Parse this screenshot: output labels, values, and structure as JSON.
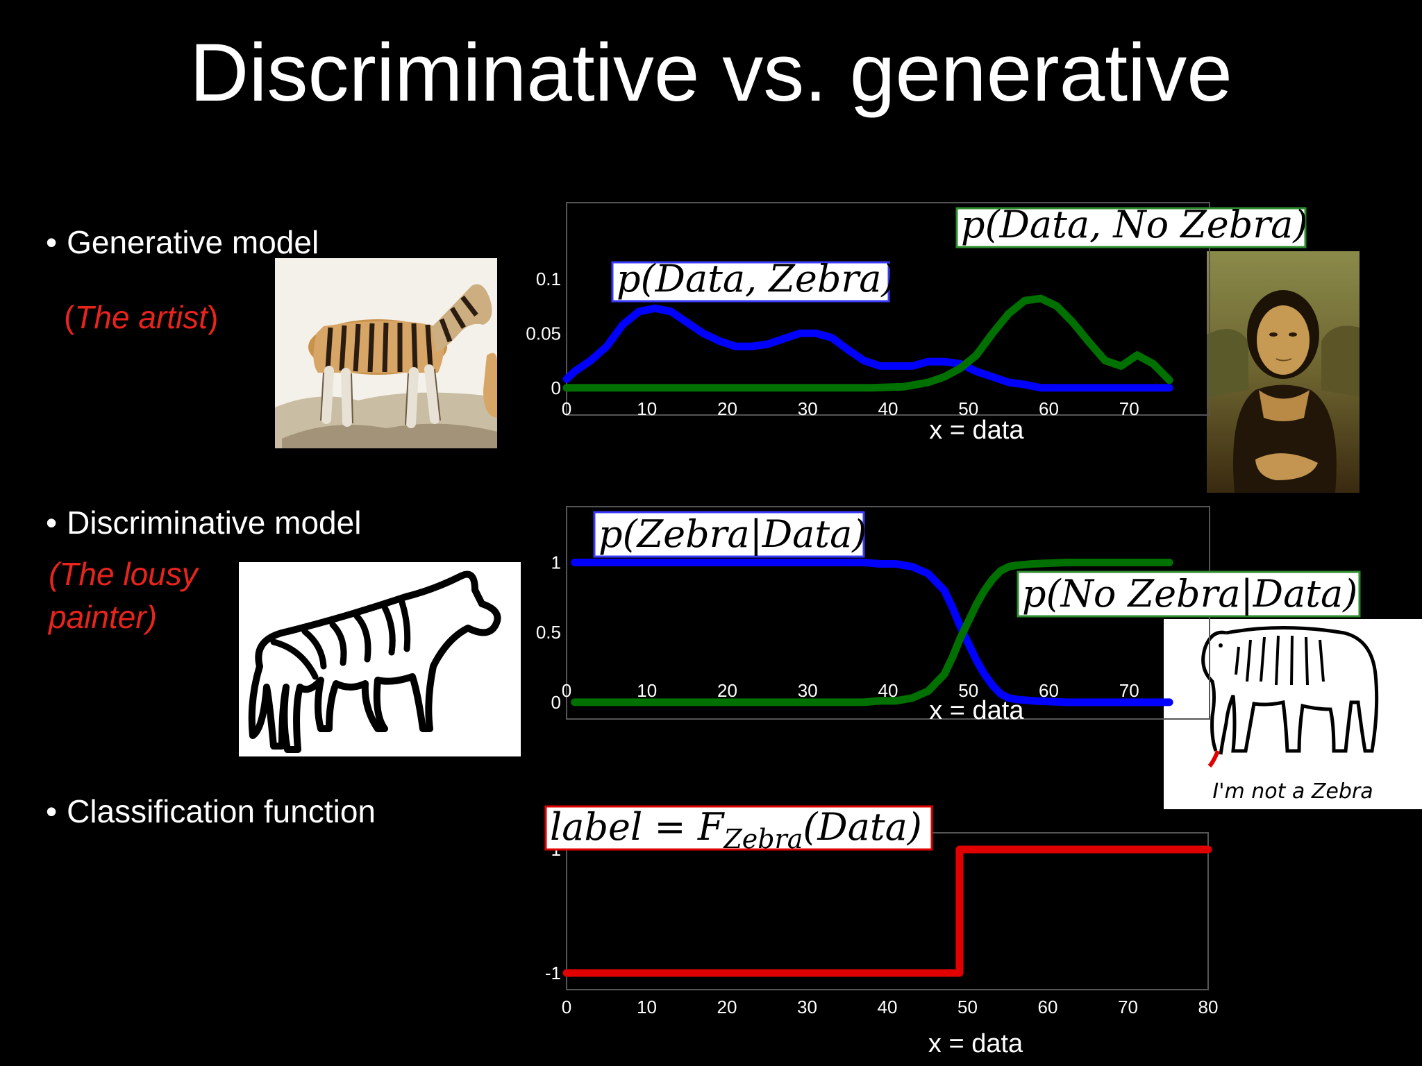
{
  "title": "Discriminative vs. generative",
  "bullets": [
    {
      "text": "Generative model",
      "sub_open": "(",
      "sub": "The artist",
      "sub_close": ")"
    },
    {
      "text": "Discriminative model",
      "sub_line1": "(The lousy",
      "sub_line2": "painter)"
    },
    {
      "text": "Classification function"
    }
  ],
  "bullet_marker": "•",
  "images": {
    "zebra_photo": "zebra-illustration",
    "mona_lisa": "mona-lisa-painting",
    "zebra_sketch": "crude-zebra-drawing",
    "elephant_sketch": {
      "caption": "I'm not a Zebra"
    }
  },
  "colors": {
    "zebra": "#0000ff",
    "no_zebra": "#007000",
    "classifier": "#e00000",
    "subtitle": "#e8241c"
  },
  "chart_data": [
    {
      "type": "line",
      "xlabel": "x = data",
      "xticks": [
        0,
        10,
        20,
        30,
        40,
        50,
        60,
        70
      ],
      "yticks": [
        0,
        0.05,
        0.1
      ],
      "ytick_labels": [
        "0",
        "0.05",
        "0.1"
      ],
      "xlim": [
        0,
        80
      ],
      "ylim": [
        -0.025,
        0.17
      ],
      "series": [
        {
          "name": "p(Data, Zebra)",
          "label_main": "p(Data, Zebra)",
          "color": "#0000ff",
          "x": [
            0,
            1,
            3,
            5,
            7,
            9,
            11,
            13,
            15,
            17,
            19,
            21,
            23,
            25,
            27,
            29,
            31,
            33,
            35,
            37,
            39,
            41,
            43,
            45,
            47,
            49,
            51,
            53,
            55,
            57,
            59,
            61,
            63,
            65,
            67,
            69,
            71,
            73,
            75
          ],
          "y": [
            0.008,
            0.015,
            0.025,
            0.038,
            0.058,
            0.07,
            0.073,
            0.07,
            0.06,
            0.05,
            0.043,
            0.038,
            0.038,
            0.04,
            0.045,
            0.05,
            0.05,
            0.046,
            0.035,
            0.025,
            0.02,
            0.02,
            0.02,
            0.024,
            0.024,
            0.022,
            0.015,
            0.01,
            0.005,
            0.003,
            0,
            0,
            0,
            0,
            0,
            0,
            0,
            0,
            0
          ]
        },
        {
          "name": "p(Data, No Zebra)",
          "label_main": "p(Data, No Zebra)",
          "color": "#007000",
          "x": [
            0,
            10,
            20,
            30,
            38,
            42,
            45,
            47,
            49,
            51,
            53,
            55,
            57,
            59,
            61,
            63,
            65,
            67,
            69,
            71,
            73,
            75
          ],
          "y": [
            0,
            0,
            0,
            0,
            0,
            0.001,
            0.005,
            0.01,
            0.018,
            0.03,
            0.05,
            0.068,
            0.08,
            0.082,
            0.075,
            0.06,
            0.042,
            0.025,
            0.02,
            0.03,
            0.022,
            0.007
          ]
        }
      ]
    },
    {
      "type": "line",
      "xlabel": "x = data",
      "xticks": [
        0,
        10,
        20,
        30,
        40,
        50,
        60,
        70
      ],
      "yticks": [
        0,
        0.5,
        1
      ],
      "ytick_labels": [
        "0",
        "0.5",
        "1"
      ],
      "xlim": [
        0,
        80
      ],
      "ylim": [
        -0.12,
        1.4
      ],
      "series": [
        {
          "name": "p(Zebra|Data)",
          "label_main": "p(Zebra|Data)",
          "color": "#0000ff",
          "x": [
            1,
            10,
            20,
            30,
            37,
            39,
            41,
            43,
            45,
            47,
            48,
            49,
            50,
            51,
            52,
            53,
            54,
            55,
            56,
            58,
            62,
            66,
            75
          ],
          "y": [
            1,
            1,
            1,
            1,
            1,
            0.99,
            0.99,
            0.97,
            0.92,
            0.8,
            0.68,
            0.54,
            0.42,
            0.3,
            0.2,
            0.12,
            0.06,
            0.03,
            0.02,
            0.01,
            0,
            0,
            0
          ]
        },
        {
          "name": "p(No Zebra|Data)",
          "label_main": "p(No Zebra|Data)",
          "color": "#007000",
          "x": [
            1,
            10,
            20,
            30,
            37,
            39,
            41,
            43,
            45,
            47,
            48,
            49,
            50,
            51,
            52,
            53,
            54,
            55,
            56,
            58,
            62,
            66,
            75
          ],
          "y": [
            0,
            0,
            0,
            0,
            0,
            0.01,
            0.01,
            0.03,
            0.08,
            0.2,
            0.32,
            0.46,
            0.58,
            0.7,
            0.8,
            0.88,
            0.94,
            0.97,
            0.98,
            0.99,
            1,
            1,
            1
          ]
        }
      ]
    },
    {
      "type": "line",
      "xlabel": "x = data",
      "xticks": [
        0,
        10,
        20,
        30,
        40,
        50,
        60,
        70,
        80
      ],
      "yticks": [
        -1,
        1
      ],
      "ytick_labels": [
        "-1",
        "1"
      ],
      "xlim": [
        0,
        80
      ],
      "ylim": [
        -1.27,
        1.27
      ],
      "series": [
        {
          "name": "label = F_Zebra(Data)",
          "label_main": "label = F",
          "label_sub": "Zebra",
          "label_tail": "(Data)",
          "color": "#e00000",
          "x": [
            0,
            49,
            49,
            80
          ],
          "y": [
            -1,
            -1,
            1,
            1
          ]
        }
      ]
    }
  ]
}
